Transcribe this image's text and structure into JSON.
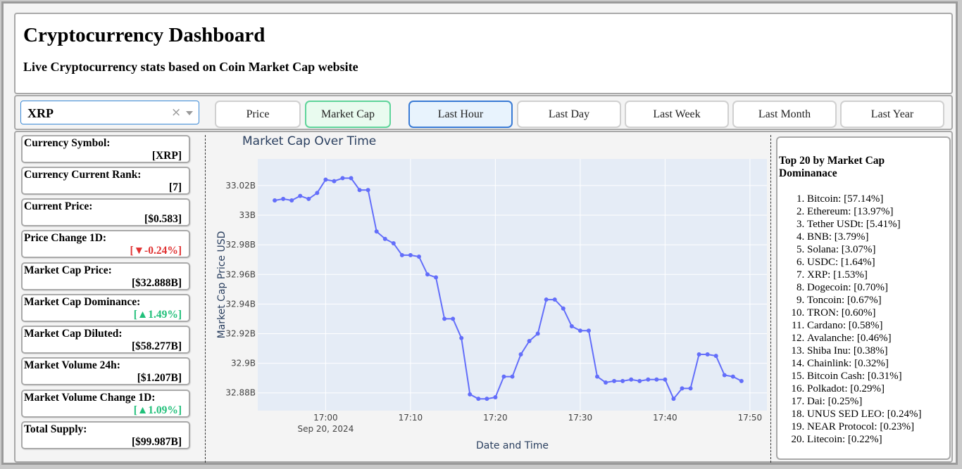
{
  "header": {
    "title": "Cryptocurrency Dashboard",
    "subtitle": "Live Cryptocurrency stats based on Coin Market Cap website"
  },
  "controls": {
    "selected_currency": "XRP",
    "clear_glyph": "×",
    "metric_buttons": [
      "Price",
      "Market Cap"
    ],
    "active_metric": "Market Cap",
    "range_buttons": [
      "Last Hour",
      "Last Day",
      "Last Week",
      "Last Month",
      "Last Year"
    ],
    "active_range": "Last Hour"
  },
  "stats": [
    {
      "label": "Currency Symbol:",
      "value": "[XRP]",
      "trend": "none"
    },
    {
      "label": "Currency Current Rank:",
      "value": "[7]",
      "trend": "none"
    },
    {
      "label": "Current Price:",
      "value": "[$0.583]",
      "trend": "none"
    },
    {
      "label": "Price Change 1D:",
      "value": "[▼-0.24%]",
      "trend": "down"
    },
    {
      "label": "Market Cap Price:",
      "value": "[$32.888B]",
      "trend": "none"
    },
    {
      "label": "Market Cap Dominance:",
      "value": "[▲1.49%]",
      "trend": "up"
    },
    {
      "label": "Market Cap Diluted:",
      "value": "[$58.277B]",
      "trend": "none"
    },
    {
      "label": "Market Volume 24h:",
      "value": "[$1.207B]",
      "trend": "none"
    },
    {
      "label": "Market Volume Change 1D:",
      "value": "[▲1.09%]",
      "trend": "up"
    },
    {
      "label": "Total Supply:",
      "value": "[$99.987B]",
      "trend": "none"
    }
  ],
  "colors": {
    "down": "#e03131",
    "up": "#21c07a",
    "line": "#636efa",
    "plot_bg": "#e5ecf6"
  },
  "top20": {
    "heading": "Top 20 by Market Cap Dominanace",
    "items": [
      "Bitcoin: [57.14%]",
      "Ethereum: [13.97%]",
      "Tether USDt: [5.41%]",
      "BNB: [3.79%]",
      "Solana: [3.07%]",
      "USDC: [1.64%]",
      "XRP: [1.53%]",
      "Dogecoin: [0.70%]",
      "Toncoin: [0.67%]",
      "TRON: [0.60%]",
      "Cardano: [0.58%]",
      "Avalanche: [0.46%]",
      "Shiba Inu: [0.38%]",
      "Chainlink: [0.32%]",
      "Bitcoin Cash: [0.31%]",
      "Polkadot: [0.29%]",
      "Dai: [0.25%]",
      "UNUS SED LEO: [0.24%]",
      "NEAR Protocol: [0.23%]",
      "Litecoin: [0.22%]"
    ]
  },
  "chart_data": {
    "type": "line",
    "title": "Market Cap Over Time",
    "xlabel": "Date and Time",
    "ylabel": "Market Cap Price USD",
    "date_label": "Sep 20, 2024",
    "x_ticks": [
      "17:00",
      "17:10",
      "17:20",
      "17:30",
      "17:40",
      "17:50"
    ],
    "y_ticks": [
      "32.88B",
      "32.9B",
      "32.92B",
      "32.94B",
      "32.96B",
      "32.98B",
      "33B",
      "33.02B"
    ],
    "y_tick_values": [
      32.88,
      32.9,
      32.92,
      32.94,
      32.96,
      32.98,
      33.0,
      33.02
    ],
    "ylim": [
      32.868,
      33.038
    ],
    "xlim": [
      "16:52",
      "17:52"
    ],
    "grid": true,
    "x": [
      "16:54",
      "16:55",
      "16:56",
      "16:57",
      "16:58",
      "16:59",
      "17:00",
      "17:01",
      "17:02",
      "17:03",
      "17:04",
      "17:05",
      "17:06",
      "17:07",
      "17:08",
      "17:09",
      "17:10",
      "17:11",
      "17:12",
      "17:13",
      "17:14",
      "17:15",
      "17:16",
      "17:17",
      "17:18",
      "17:19",
      "17:20",
      "17:21",
      "17:22",
      "17:23",
      "17:24",
      "17:25",
      "17:26",
      "17:27",
      "17:28",
      "17:29",
      "17:30",
      "17:31",
      "17:32",
      "17:33",
      "17:34",
      "17:35",
      "17:36",
      "17:37",
      "17:38",
      "17:39",
      "17:40",
      "17:41",
      "17:42",
      "17:43",
      "17:44",
      "17:45",
      "17:46",
      "17:47",
      "17:48",
      "17:49"
    ],
    "values": [
      33.01,
      33.011,
      33.01,
      33.013,
      33.011,
      33.015,
      33.024,
      33.023,
      33.025,
      33.025,
      33.017,
      33.017,
      32.989,
      32.984,
      32.981,
      32.973,
      32.973,
      32.972,
      32.96,
      32.958,
      32.93,
      32.93,
      32.917,
      32.879,
      32.876,
      32.876,
      32.877,
      32.891,
      32.891,
      32.906,
      32.915,
      32.92,
      32.943,
      32.943,
      32.937,
      32.925,
      32.922,
      32.922,
      32.891,
      32.887,
      32.888,
      32.888,
      32.889,
      32.888,
      32.889,
      32.889,
      32.889,
      32.876,
      32.883,
      32.883,
      32.906,
      32.906,
      32.905,
      32.892,
      32.891,
      32.888
    ]
  }
}
